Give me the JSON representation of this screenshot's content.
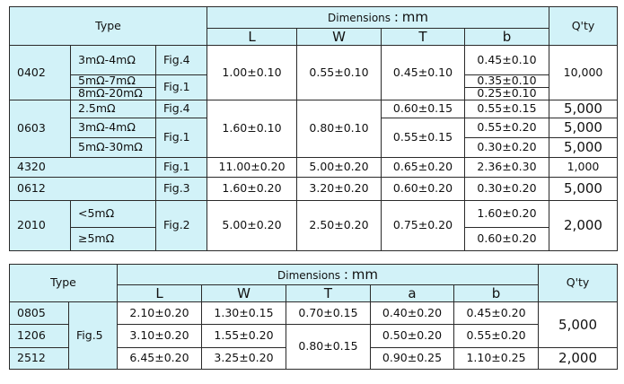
{
  "table1": {
    "header": {
      "type": "Type",
      "dimensions": "Dimensions",
      "colon": ":",
      "unit": "mm",
      "qty": "Q'ty",
      "cols": [
        "L",
        "W",
        "T",
        "b"
      ]
    },
    "g0402": {
      "type": "0402",
      "r1": "3mΩ-4mΩ",
      "r2": "5mΩ-7mΩ",
      "r3": "8mΩ-20mΩ",
      "fig_a": "Fig.4",
      "fig_b": "Fig.1",
      "L": "1.00±0.10",
      "W": "0.55±0.10",
      "T": "0.45±0.10",
      "b1": "0.45±0.10",
      "b2": "0.35±0.10",
      "b3": "0.25±0.10",
      "qty": "10,000"
    },
    "g0603": {
      "type": "0603",
      "r1": "2.5mΩ",
      "r2": "3mΩ-4mΩ",
      "r3": "5mΩ-30mΩ",
      "fig_a": "Fig.4",
      "fig_b": "Fig.1",
      "L": "1.60±0.10",
      "W": "0.80±0.10",
      "T1": "0.60±0.15",
      "T2": "0.55±0.15",
      "b1": "0.55±0.15",
      "b2": "0.55±0.20",
      "b3": "0.30±0.20",
      "q1": "5,000",
      "q2": "5,000",
      "q3": "5,000"
    },
    "g4320": {
      "type": "4320",
      "fig": "Fig.1",
      "L": "11.00±0.20",
      "W": "5.00±0.20",
      "T": "0.65±0.20",
      "b": "2.36±0.30",
      "qty": "1,000"
    },
    "g0612": {
      "type": "0612",
      "fig": "Fig.3",
      "L": "1.60±0.20",
      "W": "3.20±0.20",
      "T": "0.60±0.20",
      "b": "0.30±0.20",
      "qty": "5,000"
    },
    "g2010": {
      "type": "2010",
      "r1": "<5mΩ",
      "r2": "≥5mΩ",
      "fig": "Fig.2",
      "L": "5.00±0.20",
      "W": "2.50±0.20",
      "T": "0.75±0.20",
      "b1": "1.60±0.20",
      "b2": "0.60±0.20",
      "qty": "2,000"
    }
  },
  "table2": {
    "header": {
      "type": "Type",
      "dimensions": "Dimensions",
      "colon": ":",
      "unit": "mm",
      "qty": "Q'ty",
      "cols": [
        "L",
        "W",
        "T",
        "a",
        "b"
      ]
    },
    "fig": "Fig.5",
    "r0805": {
      "type": "0805",
      "L": "2.10±0.20",
      "W": "1.30±0.15",
      "T": "0.70±0.15",
      "a": "0.40±0.20",
      "b": "0.45±0.20"
    },
    "r1206": {
      "type": "1206",
      "L": "3.10±0.20",
      "W": "1.55±0.20",
      "a": "0.50±0.20",
      "b": "0.55±0.20"
    },
    "r2512": {
      "type": "2512",
      "L": "6.45±0.20",
      "W": "3.25±0.20",
      "a": "0.90±0.25",
      "b": "1.10±0.25"
    },
    "T_shared": "0.80±0.15",
    "qty_a": "5,000",
    "qty_b": "2,000"
  }
}
